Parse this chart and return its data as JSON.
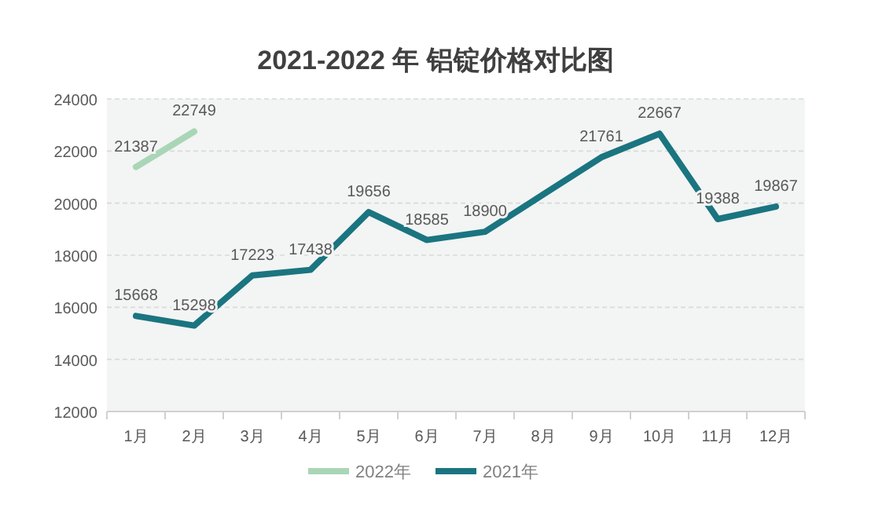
{
  "chart_data": {
    "type": "line",
    "title": "2021-2022 年 铝锭价格对比图",
    "categories": [
      "1月",
      "2月",
      "3月",
      "4月",
      "5月",
      "6月",
      "7月",
      "8月",
      "9月",
      "10月",
      "11月",
      "12月"
    ],
    "series": [
      {
        "name": "2022年",
        "color": "#a9d6b6",
        "values": [
          21387,
          22749,
          null,
          null,
          null,
          null,
          null,
          null,
          null,
          null,
          null,
          null
        ],
        "value_labels": [
          "21387",
          "22749",
          null,
          null,
          null,
          null,
          null,
          null,
          null,
          null,
          null,
          null
        ]
      },
      {
        "name": "2021年",
        "color": "#1a7580",
        "values": [
          15668,
          15298,
          17223,
          17438,
          19656,
          18585,
          18900,
          20330,
          21761,
          22667,
          19388,
          19867
        ],
        "value_labels": [
          "15668",
          "15298",
          "17223",
          "17438",
          "19656",
          "18585",
          "18900",
          null,
          "21761",
          "22667",
          "19388",
          "19867"
        ]
      }
    ],
    "ylim": [
      12000,
      24000
    ],
    "yticks": [
      12000,
      14000,
      16000,
      18000,
      20000,
      22000,
      24000
    ],
    "grid": "y",
    "legend": "bottom",
    "marker": "none",
    "line_style": "solid"
  }
}
